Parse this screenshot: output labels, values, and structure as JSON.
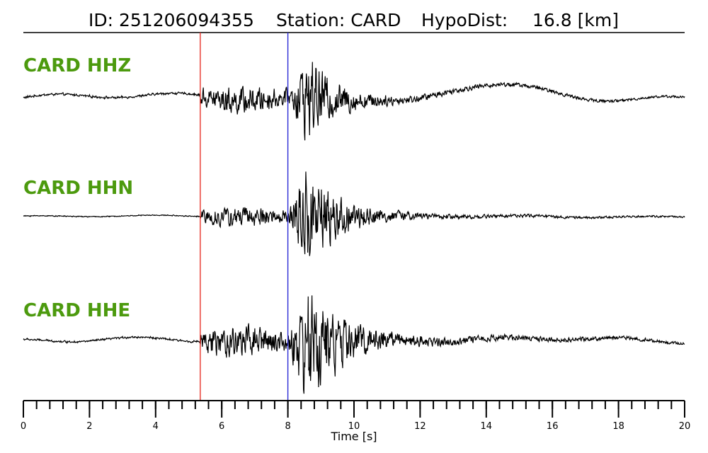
{
  "header": {
    "id_text": "ID: 251206094355",
    "station_text": "Station: CARD",
    "hypodist_label": "HypoDist:",
    "hypodist_value": "16.8 [km]"
  },
  "colors": {
    "label": "#4c9a0e",
    "trace": "#000000",
    "p_pick": "#e8322a",
    "s_pick": "#2a2ad6"
  },
  "chart_data": {
    "type": "line",
    "title": "ID: 251206094355   Station: CARD   HypoDist:    16.8 [km]",
    "xlabel": "Time [s]",
    "ylabel": "",
    "xlim": [
      0,
      20
    ],
    "x_ticks": [
      0,
      2,
      4,
      6,
      8,
      10,
      12,
      14,
      16,
      18,
      20
    ],
    "x_minor_step": 0.4,
    "grid": false,
    "picks": [
      {
        "phase": "P",
        "time": 5.35,
        "color": "#e8322a"
      },
      {
        "phase": "S",
        "time": 8.0,
        "color": "#2a2ad6"
      }
    ],
    "series": [
      {
        "name": "CARD HHZ",
        "noise_level": 0.06,
        "p_amp": 0.35,
        "s_amp": 0.9,
        "coda_decay": 1.2,
        "coda_floor": 0.12,
        "long_period": [
          {
            "t0": 14.3,
            "width": 1.6,
            "amp": 0.35
          },
          {
            "t0": 11.8,
            "width": 1.0,
            "amp": -0.15
          }
        ],
        "pre_event_drift": 0.06
      },
      {
        "name": "CARD HHN",
        "noise_level": 0.02,
        "p_amp": 0.22,
        "s_amp": 1.0,
        "coda_decay": 1.1,
        "coda_floor": 0.08,
        "long_period": [],
        "pre_event_drift": 0.015
      },
      {
        "name": "CARD HHE",
        "noise_level": 0.04,
        "p_amp": 0.3,
        "s_amp": 1.0,
        "coda_decay": 1.0,
        "coda_floor": 0.13,
        "long_period": [
          {
            "t0": 16.8,
            "width": 2.0,
            "amp": 0.08
          }
        ],
        "pre_event_drift": 0.04
      }
    ]
  }
}
